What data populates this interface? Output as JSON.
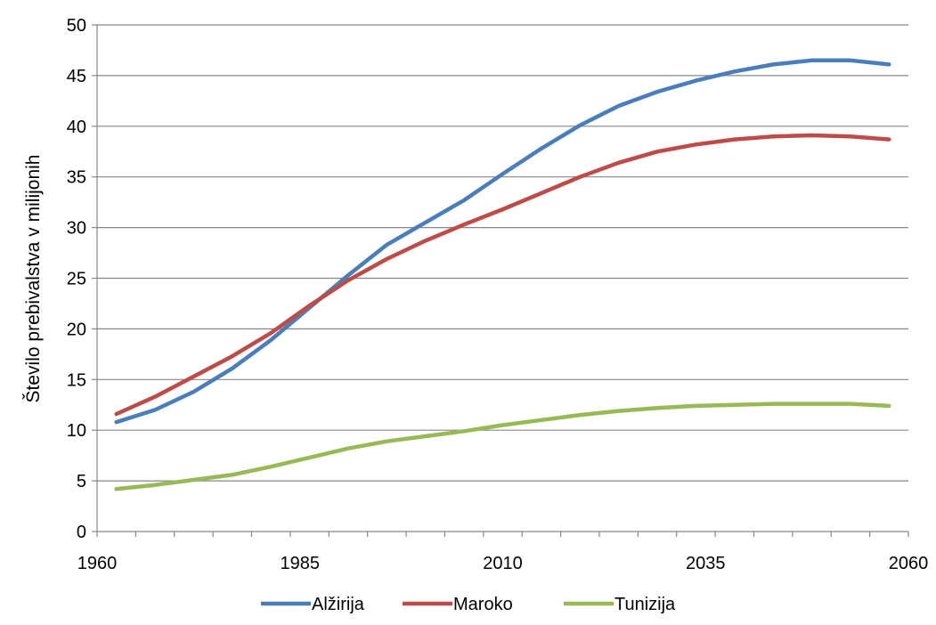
{
  "chart_data": {
    "type": "line",
    "title": "",
    "xlabel": "",
    "ylabel": "Število prebivalstva v milijonih",
    "x": [
      1960,
      1965,
      1970,
      1975,
      1980,
      1985,
      1990,
      1995,
      2000,
      2005,
      2010,
      2015,
      2020,
      2025,
      2030,
      2035,
      2040,
      2045,
      2050,
      2055,
      2060
    ],
    "xlim": [
      1960,
      2060
    ],
    "ylim": [
      0,
      50
    ],
    "x_ticks": [
      1960,
      1985,
      2010,
      2035,
      2060
    ],
    "y_ticks": [
      0,
      5,
      10,
      15,
      20,
      25,
      30,
      35,
      40,
      45,
      50
    ],
    "grid": "horizontal",
    "legend_position": "bottom",
    "series": [
      {
        "name": "Alžirija",
        "color": "#4a7ebb",
        "values": [
          10.8,
          12.0,
          13.8,
          16.1,
          18.9,
          22.1,
          25.3,
          28.3,
          30.5,
          32.7,
          35.3,
          37.8,
          40.1,
          42.0,
          43.4,
          44.5,
          45.4,
          46.1,
          46.5,
          46.5,
          46.1
        ]
      },
      {
        "name": "Maroko",
        "color": "#be4b48",
        "values": [
          11.6,
          13.3,
          15.3,
          17.3,
          19.6,
          22.3,
          24.8,
          26.9,
          28.7,
          30.3,
          31.8,
          33.4,
          35.0,
          36.4,
          37.5,
          38.2,
          38.7,
          39.0,
          39.1,
          39.0,
          38.7
        ]
      },
      {
        "name": "Tunizija",
        "color": "#98b954",
        "values": [
          4.2,
          4.6,
          5.1,
          5.6,
          6.4,
          7.3,
          8.2,
          8.9,
          9.4,
          9.9,
          10.5,
          11.0,
          11.5,
          11.9,
          12.2,
          12.4,
          12.5,
          12.6,
          12.6,
          12.6,
          12.4
        ]
      }
    ]
  }
}
